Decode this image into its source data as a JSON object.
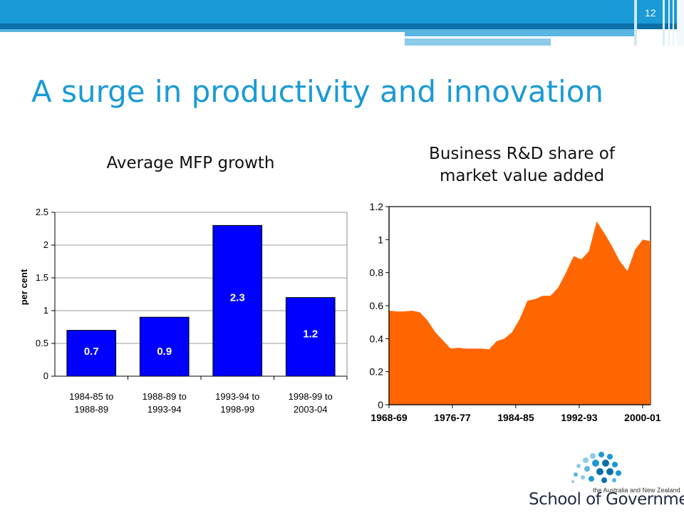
{
  "slide": {
    "page_number": "12",
    "title": "A surge in productivity and innovation"
  },
  "logo": {
    "subtitle": "the Australia and New Zealand",
    "name": "School of Government"
  },
  "colors": {
    "header_blue": "#1a9ad6",
    "bar_blue": "#0000ff",
    "area_orange": "#ff6600"
  },
  "chart_data": [
    {
      "type": "bar",
      "title": "Average MFP growth",
      "ylabel": "per cent",
      "categories": [
        "1984-85 to\n1988-89",
        "1988-89 to\n1993-94",
        "1993-94 to\n1998-99",
        "1998-99 to\n2003-04"
      ],
      "values": [
        0.7,
        0.9,
        2.3,
        1.2
      ],
      "data_labels": [
        "0.7",
        "0.9",
        "2.3",
        "1.2"
      ],
      "ylim": [
        0,
        2.5
      ],
      "yticks": [
        0,
        0.5,
        1,
        1.5,
        2,
        2.5
      ],
      "ytick_labels": [
        "0",
        "0.5",
        "1",
        "1.5",
        "2",
        "2.5"
      ],
      "grid": true
    },
    {
      "type": "area",
      "title": "Business R&D share of\nmarket value added",
      "x_start": 1968,
      "x_end": 2001,
      "xtick_labels": [
        "1968-69",
        "1976-77",
        "1984-85",
        "1992-93",
        "2000-01"
      ],
      "xtick_years": [
        1968,
        1976,
        1984,
        1992,
        2000
      ],
      "values": [
        0.57,
        0.565,
        0.565,
        0.57,
        0.56,
        0.51,
        0.44,
        0.39,
        0.34,
        0.345,
        0.34,
        0.34,
        0.34,
        0.335,
        0.385,
        0.4,
        0.44,
        0.52,
        0.63,
        0.64,
        0.66,
        0.66,
        0.71,
        0.8,
        0.9,
        0.88,
        0.93,
        1.11,
        1.04,
        0.96,
        0.87,
        0.81,
        0.94,
        1.0,
        0.99
      ],
      "ylim": [
        0,
        1.2
      ],
      "yticks": [
        0,
        0.2,
        0.4,
        0.6,
        0.8,
        1,
        1.2
      ],
      "ytick_labels": [
        "0",
        "0.2",
        "0.4",
        "0.6",
        "0.8",
        "1",
        "1.2"
      ],
      "grid": false
    }
  ]
}
